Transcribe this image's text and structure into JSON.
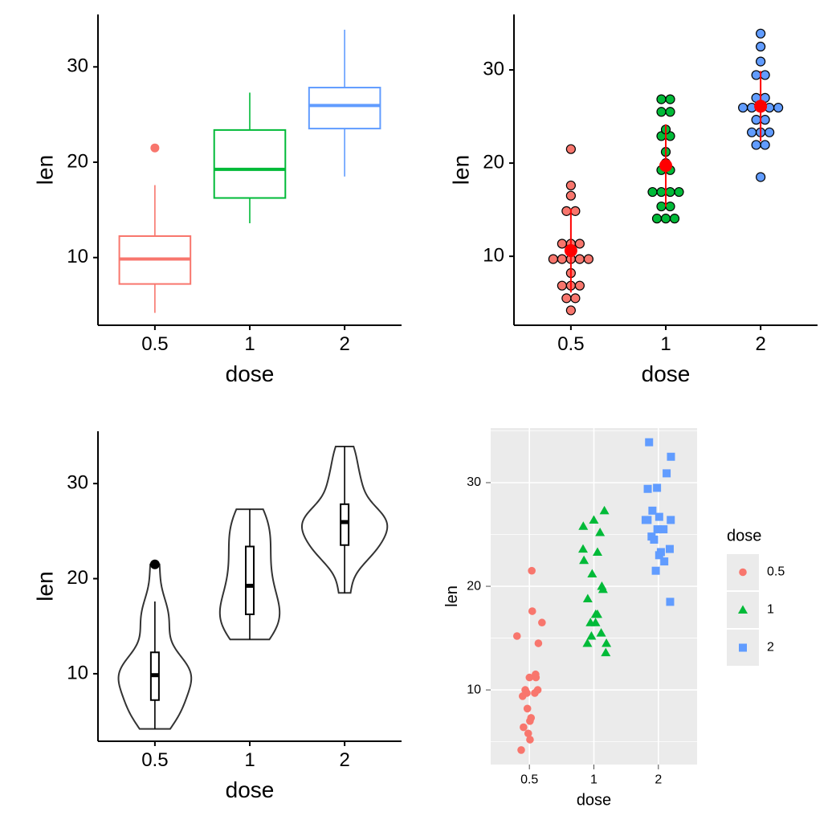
{
  "chart_data": [
    {
      "type": "box",
      "x_label": "dose",
      "y_label": "len",
      "categories": [
        "0.5",
        "1",
        "2"
      ],
      "colors": [
        "#F8766D",
        "#00BA38",
        "#619CFF"
      ],
      "boxes": [
        {
          "min": 4.2,
          "q1": 7.23,
          "median": 9.85,
          "q3": 12.25,
          "max": 17.6,
          "outliers": [
            21.5
          ]
        },
        {
          "min": 13.6,
          "q1": 16.25,
          "median": 19.25,
          "q3": 23.38,
          "max": 27.3,
          "outliers": []
        },
        {
          "min": 18.5,
          "q1": 23.53,
          "median": 25.95,
          "q3": 27.83,
          "max": 33.9,
          "outliers": []
        }
      ],
      "ylim": [
        2.9,
        35.5
      ],
      "yticks": [
        10,
        20,
        30
      ]
    },
    {
      "type": "dotplot",
      "x_label": "dose",
      "y_label": "len",
      "categories": [
        "0.5",
        "1",
        "2"
      ],
      "groups": [
        {
          "color": "#F8766D",
          "values": [
            4.2,
            11.5,
            7.3,
            5.8,
            6.4,
            10,
            11.2,
            11.2,
            5.2,
            7,
            15.2,
            21.5,
            17.6,
            9.7,
            14.5,
            10,
            8.2,
            9.4,
            16.5,
            9.7
          ]
        },
        {
          "color": "#00BA38",
          "values": [
            16.5,
            16.5,
            15.2,
            17.3,
            22.5,
            17.3,
            13.6,
            14.5,
            18.8,
            15.5,
            19.7,
            23.3,
            23.6,
            26.4,
            20,
            25.2,
            25.8,
            21.2,
            14.5,
            27.3
          ]
        },
        {
          "color": "#619CFF",
          "values": [
            23.6,
            18.5,
            33.9,
            25.5,
            26.4,
            32.5,
            26.7,
            21.5,
            23.3,
            29.5,
            25.5,
            26.4,
            22.4,
            24.5,
            24.8,
            30.9,
            26.4,
            27.3,
            29.4,
            23
          ]
        }
      ],
      "means": [
        10.61,
        19.74,
        26.1
      ],
      "sds": [
        4.5,
        4.42,
        3.77
      ],
      "summary_color": "#FF0000",
      "ylim": [
        2.6,
        35.95
      ],
      "yticks": [
        10,
        20,
        30
      ]
    },
    {
      "type": "violin",
      "x_label": "dose",
      "y_label": "len",
      "categories": [
        "0.5",
        "1",
        "2"
      ],
      "groups": [
        {
          "values": [
            4.2,
            11.5,
            7.3,
            5.8,
            6.4,
            10,
            11.2,
            11.2,
            5.2,
            7,
            15.2,
            21.5,
            17.6,
            9.7,
            14.5,
            10,
            8.2,
            9.4,
            16.5,
            9.7
          ]
        },
        {
          "values": [
            16.5,
            16.5,
            15.2,
            17.3,
            22.5,
            17.3,
            13.6,
            14.5,
            18.8,
            15.5,
            19.7,
            23.3,
            23.6,
            26.4,
            20,
            25.2,
            25.8,
            21.2,
            14.5,
            27.3
          ]
        },
        {
          "values": [
            23.6,
            18.5,
            33.9,
            25.5,
            26.4,
            32.5,
            26.7,
            21.5,
            23.3,
            29.5,
            25.5,
            26.4,
            22.4,
            24.5,
            24.8,
            30.9,
            26.4,
            27.3,
            29.4,
            23
          ]
        }
      ],
      "boxes": [
        {
          "min": 4.2,
          "q1": 7.23,
          "median": 9.85,
          "q3": 12.25,
          "max": 17.6,
          "outliers": [
            21.5
          ]
        },
        {
          "min": 13.6,
          "q1": 16.25,
          "median": 19.25,
          "q3": 23.38,
          "max": 27.3,
          "outliers": []
        },
        {
          "min": 18.5,
          "q1": 23.53,
          "median": 25.95,
          "q3": 27.83,
          "max": 33.9,
          "outliers": []
        }
      ],
      "ylim": [
        2.9,
        35.5
      ],
      "yticks": [
        10,
        20,
        30
      ]
    },
    {
      "type": "scatter",
      "x_label": "dose",
      "y_label": "len",
      "categories": [
        "0.5",
        "1",
        "2"
      ],
      "legend_title": "dose",
      "grid": true,
      "series": [
        {
          "name": "0.5",
          "color": "#F8766D",
          "shape": "circle",
          "values": [
            4.2,
            11.5,
            7.3,
            5.8,
            6.4,
            10,
            11.2,
            11.2,
            5.2,
            7,
            15.2,
            21.5,
            17.6,
            9.7,
            14.5,
            10,
            8.2,
            9.4,
            16.5,
            9.7
          ]
        },
        {
          "name": "1",
          "color": "#00BA38",
          "shape": "triangle",
          "values": [
            16.5,
            16.5,
            15.2,
            17.3,
            22.5,
            17.3,
            13.6,
            14.5,
            18.8,
            15.5,
            19.7,
            23.3,
            23.6,
            26.4,
            20,
            25.2,
            25.8,
            21.2,
            14.5,
            27.3
          ]
        },
        {
          "name": "2",
          "color": "#619CFF",
          "shape": "square",
          "values": [
            23.6,
            18.5,
            33.9,
            25.5,
            26.4,
            32.5,
            26.7,
            21.5,
            23.3,
            29.5,
            25.5,
            26.4,
            22.4,
            24.5,
            24.8,
            30.9,
            26.4,
            27.3,
            29.4,
            23
          ]
        }
      ],
      "ylim": [
        2.8,
        35.27
      ],
      "yticks": [
        10,
        20,
        30
      ]
    }
  ]
}
